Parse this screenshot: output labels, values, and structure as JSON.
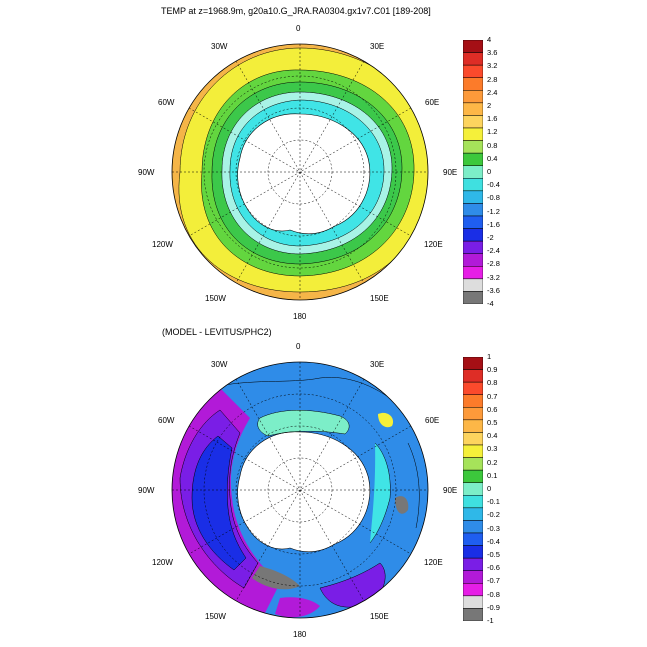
{
  "panels": [
    {
      "title": "TEMP at z=1968.9m, g20a10.G_JRA.RA0304.gx1v7.C01 [189-208]",
      "lon_labels": {
        "n": "0",
        "e30": "30E",
        "e60": "60E",
        "e90": "90E",
        "e120": "120E",
        "e150": "150E",
        "s": "180",
        "w150": "150W",
        "w120": "120W",
        "w90": "90W",
        "w60": "60W",
        "w30": "30W"
      },
      "colorbar": {
        "ticks": [
          "4",
          "3.6",
          "3.2",
          "2.8",
          "2.4",
          "2",
          "1.6",
          "1.2",
          "0.8",
          "0.4",
          "0",
          "-0.4",
          "-0.8",
          "-1.2",
          "-1.6",
          "-2",
          "-2.4",
          "-2.8",
          "-3.2",
          "-3.6",
          "-4"
        ],
        "colors": [
          "#a50f15",
          "#de2d26",
          "#fb4a2c",
          "#fc7b2a",
          "#fd9a3a",
          "#fdb747",
          "#fdd45e",
          "#f5f03a",
          "#a6e35a",
          "#3cc83c",
          "#7ceec8",
          "#3fe0e0",
          "#2fb8e8",
          "#2f8ce8",
          "#1f5ef0",
          "#1a2ee6",
          "#7a1ee6",
          "#b21ad8",
          "#e61ee6",
          "#dddddd",
          "#777777"
        ]
      }
    },
    {
      "title": "(MODEL - LEVITUS/PHC2)",
      "lon_labels": {
        "n": "0",
        "e30": "30E",
        "e60": "60E",
        "e90": "90E",
        "e120": "120E",
        "e150": "150E",
        "s": "180",
        "w150": "150W",
        "w120": "120W",
        "w90": "90W",
        "w60": "60W",
        "w30": "30W"
      },
      "colorbar": {
        "ticks": [
          "1",
          "0.9",
          "0.8",
          "0.7",
          "0.6",
          "0.5",
          "0.4",
          "0.3",
          "0.2",
          "0.1",
          "0",
          "-0.1",
          "-0.2",
          "-0.3",
          "-0.4",
          "-0.5",
          "-0.6",
          "-0.7",
          "-0.8",
          "-0.9",
          "-1"
        ],
        "colors": [
          "#a50f15",
          "#de2d26",
          "#fb4a2c",
          "#fc7b2a",
          "#fd9a3a",
          "#fdb747",
          "#fdd45e",
          "#f5f03a",
          "#a6e35a",
          "#3cc83c",
          "#7ceec8",
          "#3fe0e0",
          "#2fb8e8",
          "#2f8ce8",
          "#1f5ef0",
          "#1a2ee6",
          "#7a1ee6",
          "#b21ad8",
          "#e61ee6",
          "#dddddd",
          "#777777"
        ]
      }
    }
  ]
}
